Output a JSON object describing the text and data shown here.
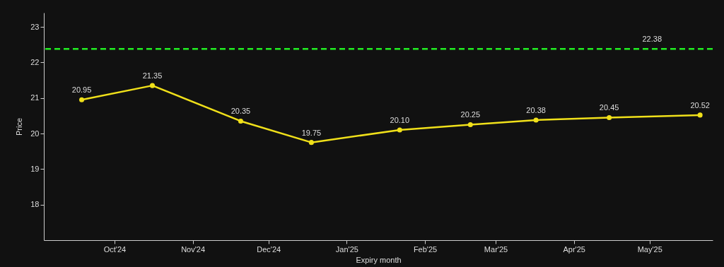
{
  "chart_data": {
    "type": "line",
    "xlabel": "Expiry month",
    "ylabel": "Price",
    "x": [
      "2024-09-18",
      "2024-10-16",
      "2024-11-20",
      "2024-12-18",
      "2025-01-22",
      "2025-02-19",
      "2025-03-17",
      "2025-04-15",
      "2025-05-21"
    ],
    "series": [
      {
        "color": "#f0e01a",
        "values": [
          20.95,
          21.35,
          20.35,
          19.75,
          20.1,
          20.25,
          20.38,
          20.45,
          20.52
        ]
      }
    ],
    "xlim": [
      "2024-09-03",
      "2025-05-26"
    ],
    "xticks": [
      {
        "value": "2024-10-01",
        "label": "Oct'24"
      },
      {
        "value": "2024-11-01",
        "label": "Nov'24"
      },
      {
        "value": "2024-12-01",
        "label": "Dec'24"
      },
      {
        "value": "2025-01-01",
        "label": "Jan'25"
      },
      {
        "value": "2025-02-01",
        "label": "Feb'25"
      },
      {
        "value": "2025-03-01",
        "label": "Mar'25"
      },
      {
        "value": "2025-04-01",
        "label": "Apr'25"
      },
      {
        "value": "2025-05-01",
        "label": "May'25"
      }
    ],
    "ylim": [
      17,
      23.4
    ],
    "yticks": [
      18,
      19,
      20,
      21,
      22,
      23
    ],
    "ref_lines": [
      {
        "axis": "y",
        "value": 22.38,
        "label": "22.38",
        "color": "#22ee22",
        "line_style": "dashed"
      }
    ],
    "value_labels": [
      "20.95",
      "21.35",
      "20.35",
      "19.75",
      "20.10",
      "20.25",
      "20.38",
      "20.45",
      "20.52"
    ],
    "grid": false,
    "marker": "circle",
    "line_style": "solid"
  }
}
